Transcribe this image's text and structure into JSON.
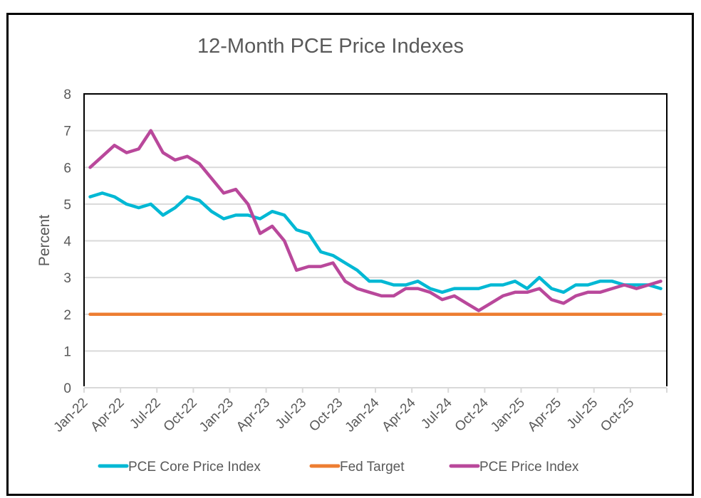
{
  "chart_data": {
    "type": "line",
    "title": "12-Month PCE Price Indexes",
    "xlabel": "",
    "ylabel": "Percent",
    "ylim": [
      0,
      8
    ],
    "yticks": [
      "0",
      "1",
      "2",
      "3",
      "4",
      "5",
      "6",
      "7",
      "8"
    ],
    "grid": true,
    "legend_position": "bottom",
    "x": [
      "Jan-22",
      "Feb-22",
      "Mar-22",
      "Apr-22",
      "May-22",
      "Jun-22",
      "Jul-22",
      "Aug-22",
      "Sep-22",
      "Oct-22",
      "Nov-22",
      "Dec-22",
      "Jan-23",
      "Feb-23",
      "Mar-23",
      "Apr-23",
      "May-23",
      "Jun-23",
      "Jul-23",
      "Aug-23",
      "Sep-23",
      "Oct-23",
      "Nov-23",
      "Dec-23",
      "Jan-24",
      "Feb-24",
      "Mar-24",
      "Apr-24",
      "May-24",
      "Jun-24",
      "Jul-24",
      "Aug-24",
      "Sep-24",
      "Oct-24",
      "Nov-24",
      "Dec-24",
      "Jan-25",
      "Feb-25",
      "Mar-25",
      "Apr-25",
      "May-25",
      "Jun-25",
      "Jul-25",
      "Aug-25",
      "Sep-25",
      "Oct-25",
      "Nov-25",
      "Dec-25"
    ],
    "xtick_labels": [
      "Jan-22",
      "Apr-22",
      "Jul-22",
      "Oct-22",
      "Jan-23",
      "Apr-23",
      "Jul-23",
      "Oct-23",
      "Jan-24",
      "Apr-24",
      "Jul-24",
      "Oct-24",
      "Jan-25",
      "Apr-25",
      "Jul-25",
      "Oct-25"
    ],
    "series": [
      {
        "name": "PCE Core Price Index",
        "color": "#00B8D4",
        "values": [
          5.2,
          5.3,
          5.2,
          5.0,
          4.9,
          5.0,
          4.7,
          4.9,
          5.2,
          5.1,
          4.8,
          4.6,
          4.7,
          4.7,
          4.6,
          4.8,
          4.7,
          4.3,
          4.2,
          3.7,
          3.6,
          3.4,
          3.2,
          2.9,
          2.9,
          2.8,
          2.8,
          2.9,
          2.7,
          2.6,
          2.7,
          2.7,
          2.7,
          2.8,
          2.8,
          2.9,
          2.7,
          3.0,
          2.7,
          2.6,
          2.8,
          2.8,
          2.9,
          2.9,
          2.8,
          2.8,
          2.8,
          2.7
        ]
      },
      {
        "name": "Fed Target",
        "color": "#ED7D31",
        "values": [
          2,
          2,
          2,
          2,
          2,
          2,
          2,
          2,
          2,
          2,
          2,
          2,
          2,
          2,
          2,
          2,
          2,
          2,
          2,
          2,
          2,
          2,
          2,
          2,
          2,
          2,
          2,
          2,
          2,
          2,
          2,
          2,
          2,
          2,
          2,
          2,
          2,
          2,
          2,
          2,
          2,
          2,
          2,
          2,
          2,
          2,
          2,
          2
        ]
      },
      {
        "name": "PCE Price Index",
        "color": "#B9489B",
        "values": [
          6.0,
          6.3,
          6.6,
          6.4,
          6.5,
          7.0,
          6.4,
          6.2,
          6.3,
          6.1,
          5.7,
          5.3,
          5.4,
          5.0,
          4.2,
          4.4,
          4.0,
          3.2,
          3.3,
          3.3,
          3.4,
          2.9,
          2.7,
          2.6,
          2.5,
          2.5,
          2.7,
          2.7,
          2.6,
          2.4,
          2.5,
          2.3,
          2.1,
          2.3,
          2.5,
          2.6,
          2.6,
          2.7,
          2.4,
          2.3,
          2.5,
          2.6,
          2.6,
          2.7,
          2.8,
          2.7,
          2.8,
          2.9
        ]
      }
    ]
  }
}
